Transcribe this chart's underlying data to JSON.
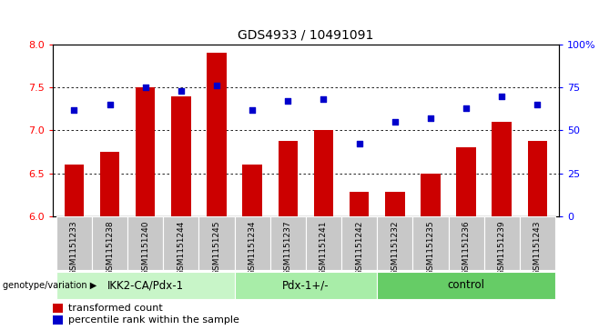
{
  "title": "GDS4933 / 10491091",
  "samples": [
    "GSM1151233",
    "GSM1151238",
    "GSM1151240",
    "GSM1151244",
    "GSM1151245",
    "GSM1151234",
    "GSM1151237",
    "GSM1151241",
    "GSM1151242",
    "GSM1151232",
    "GSM1151235",
    "GSM1151236",
    "GSM1151239",
    "GSM1151243"
  ],
  "transformed_count": [
    6.6,
    6.75,
    7.5,
    7.4,
    7.9,
    6.6,
    6.88,
    7.0,
    6.28,
    6.28,
    6.5,
    6.8,
    7.1,
    6.88
  ],
  "percentile_rank": [
    62,
    65,
    75,
    73,
    76,
    62,
    67,
    68,
    42,
    55,
    57,
    63,
    70,
    65
  ],
  "groups": [
    {
      "label": "IKK2-CA/Pdx-1",
      "start": 0,
      "end": 5,
      "color": "#c8f5c8"
    },
    {
      "label": "Pdx-1+/-",
      "start": 5,
      "end": 9,
      "color": "#a8eda8"
    },
    {
      "label": "control",
      "start": 9,
      "end": 14,
      "color": "#66cc66"
    }
  ],
  "ylim": [
    6.0,
    8.0
  ],
  "yticks_left": [
    6.0,
    6.5,
    7.0,
    7.5,
    8.0
  ],
  "yticks_right_vals": [
    0,
    25,
    50,
    75,
    100
  ],
  "bar_color": "#cc0000",
  "dot_color": "#0000cc",
  "bar_bottom": 6.0,
  "legend_bar_label": "transformed count",
  "legend_dot_label": "percentile rank within the sample",
  "genotype_label": "genotype/variation",
  "sample_bg_color": "#c8c8c8",
  "plot_bg": "#ffffff",
  "grid_dotted_vals": [
    6.5,
    7.0,
    7.5
  ],
  "title_fontsize": 10,
  "tick_fontsize": 8,
  "sample_fontsize": 6.5,
  "group_fontsize": 8.5,
  "legend_fontsize": 8
}
